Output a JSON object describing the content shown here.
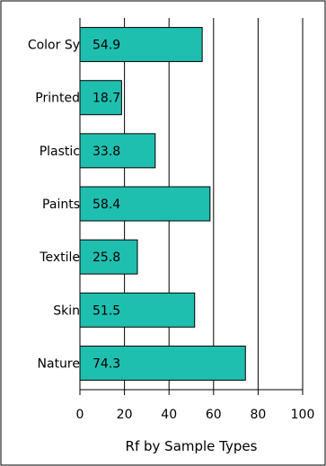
{
  "chart_data": {
    "type": "bar",
    "orientation": "horizontal",
    "categories": [
      "Color Sy",
      "Printed",
      "Plastic",
      "Paints",
      "Textile",
      "Skin",
      "Nature"
    ],
    "values": [
      54.9,
      18.7,
      33.8,
      58.4,
      25.8,
      51.5,
      74.3
    ],
    "value_labels": [
      "54.9",
      "18.7",
      "33.8",
      "58.4",
      "25.8",
      "51.5",
      "74.3"
    ],
    "title": "",
    "xlabel": "Rf by Sample Types",
    "ylabel": "",
    "xlim": [
      0,
      100
    ],
    "xticks": [
      0,
      20,
      40,
      60,
      80,
      100
    ],
    "grid": "vertical",
    "bar_color": "#1fbfaf"
  }
}
